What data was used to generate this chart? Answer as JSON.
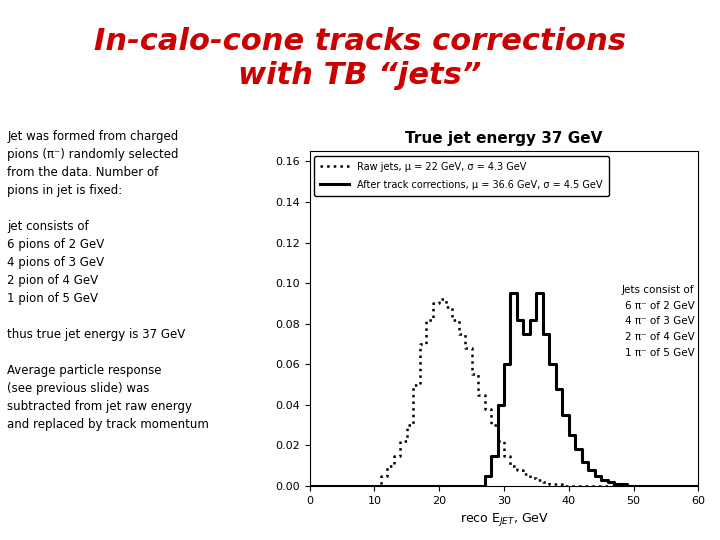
{
  "title": "In-calo-cone tracks corrections\nwith TB “jets”",
  "title_color": "#cc0000",
  "title_fontsize": 22,
  "title_style": "italic",
  "title_weight": "bold",
  "bg_color": "#ffffff",
  "left_text_lines": [
    "Jet was formed from charged",
    "pions (π⁻) randomly selected",
    "from the data. Number of",
    "pions in jet is fixed:",
    "",
    "jet consists of",
    "6 pions of 2 GeV",
    "4 pions of 3 GeV",
    "2 pion of 4 GeV",
    "1 pion of 5 GeV",
    "",
    "thus true jet energy is 37 GeV",
    "",
    "Average particle response",
    "(see previous slide) was",
    "subtracted from jet raw energy",
    "and replaced by track momentum"
  ],
  "plot_title": "True jet energy 37 GeV",
  "xlabel": "reco E$_{JET}$, GeV",
  "xlim": [
    0,
    60
  ],
  "ylim": [
    0,
    0.165
  ],
  "yticks": [
    0,
    0.02,
    0.04,
    0.06,
    0.08,
    0.1,
    0.12,
    0.14,
    0.16
  ],
  "xticks": [
    0,
    10,
    20,
    30,
    40,
    50,
    60
  ],
  "legend_raw": "Raw jets, μ = 22 GeV, σ = 4.3 GeV",
  "legend_corr": "After track corrections, μ = 36.6 GeV, σ = 4.5 GeV",
  "side_note": "Jets consist of\n6 π⁻ of 2 GeV\n4 π⁻ of 3 GeV\n2 π⁻ of 4 GeV\n1 π⁻ of 5 GeV",
  "raw_x": [
    0,
    1,
    2,
    3,
    4,
    5,
    6,
    7,
    8,
    9,
    10,
    11,
    12,
    13,
    14,
    15,
    16,
    17,
    18,
    19,
    20,
    21,
    22,
    23,
    24,
    25,
    26,
    27,
    28,
    29,
    30,
    31,
    32,
    33,
    34,
    35,
    36,
    37,
    38,
    39,
    40,
    41,
    42,
    43,
    44,
    45,
    46,
    47,
    48,
    49,
    50,
    51,
    52,
    53,
    54,
    55,
    56,
    57,
    58,
    59,
    60
  ],
  "raw_y": [
    0,
    0,
    0,
    0,
    0,
    0,
    0,
    0,
    0,
    0,
    0,
    0.005,
    0.01,
    0.015,
    0.022,
    0.03,
    0.05,
    0.07,
    0.082,
    0.09,
    0.092,
    0.088,
    0.082,
    0.075,
    0.068,
    0.055,
    0.045,
    0.038,
    0.03,
    0.022,
    0.015,
    0.01,
    0.008,
    0.006,
    0.004,
    0.003,
    0.002,
    0.001,
    0.001,
    0,
    0,
    0,
    0,
    0,
    0,
    0,
    0,
    0,
    0,
    0,
    0,
    0,
    0,
    0,
    0,
    0,
    0,
    0,
    0,
    0,
    0
  ],
  "corr_x": [
    0,
    1,
    2,
    3,
    4,
    5,
    6,
    7,
    8,
    9,
    10,
    11,
    12,
    13,
    14,
    15,
    16,
    17,
    18,
    19,
    20,
    21,
    22,
    23,
    24,
    25,
    26,
    27,
    28,
    29,
    30,
    31,
    32,
    33,
    34,
    35,
    36,
    37,
    38,
    39,
    40,
    41,
    42,
    43,
    44,
    45,
    46,
    47,
    48,
    49,
    50,
    51,
    52,
    53,
    54,
    55,
    56,
    57,
    58,
    59,
    60
  ],
  "corr_y": [
    0,
    0,
    0,
    0,
    0,
    0,
    0,
    0,
    0,
    0,
    0,
    0,
    0,
    0,
    0,
    0,
    0,
    0,
    0,
    0,
    0,
    0,
    0,
    0,
    0,
    0,
    0,
    0.005,
    0.015,
    0.04,
    0.06,
    0.095,
    0.082,
    0.075,
    0.082,
    0.095,
    0.075,
    0.06,
    0.048,
    0.035,
    0.025,
    0.018,
    0.012,
    0.008,
    0.005,
    0.003,
    0.002,
    0.001,
    0.001,
    0,
    0,
    0,
    0,
    0,
    0,
    0,
    0,
    0,
    0,
    0,
    0
  ]
}
